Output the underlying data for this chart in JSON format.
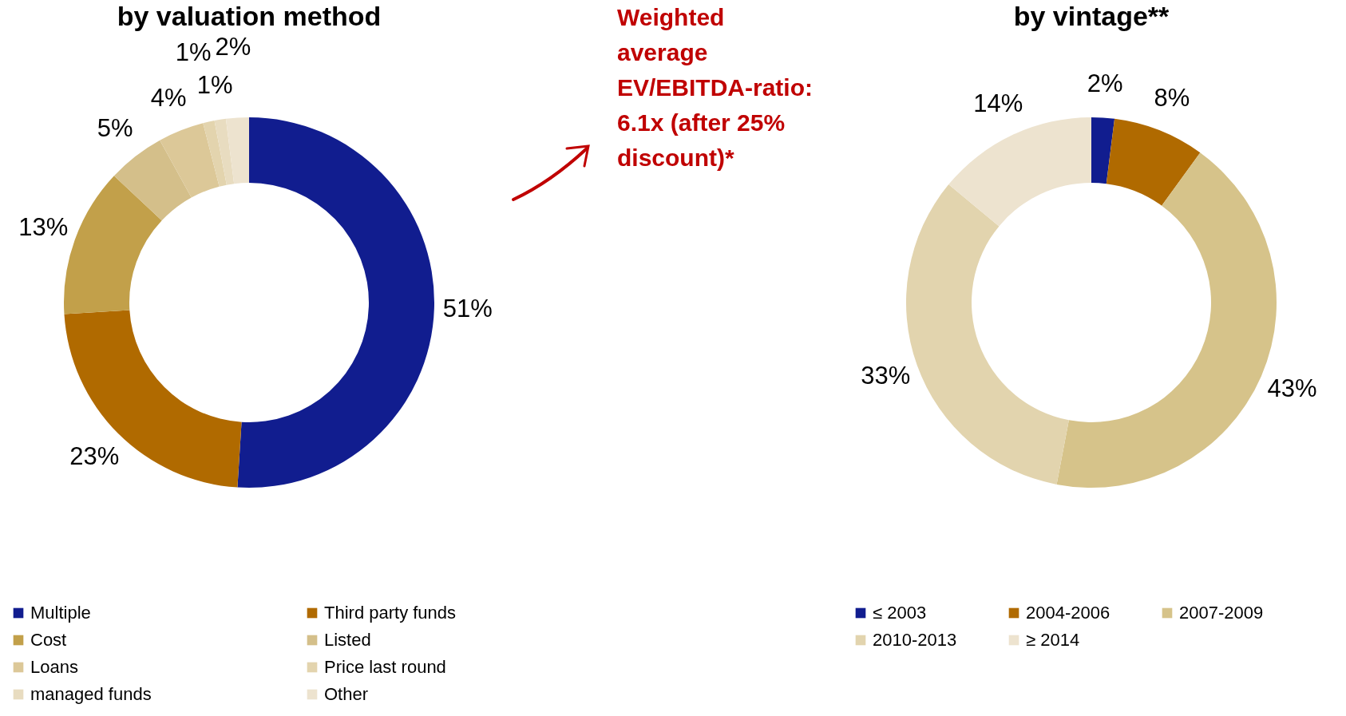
{
  "chart_data": [
    {
      "type": "donut",
      "title": "by valuation method",
      "categories": [
        "Multiple",
        "Third party funds",
        "Cost",
        "Listed",
        "Loans",
        "Price last round",
        "managed funds",
        "Other"
      ],
      "values": [
        51,
        23,
        13,
        5,
        4,
        1,
        1,
        2
      ],
      "colors": [
        "#111d8f",
        "#b06a00",
        "#c2a04a",
        "#d4bf8a",
        "#dcc898",
        "#e3d4ae",
        "#e8dcc0",
        "#ede3cf"
      ],
      "value_labels": [
        "51%",
        "23%",
        "13%",
        "5%",
        "4%",
        "1%",
        "1%",
        "2%"
      ],
      "legend": "bottom",
      "annotations": [
        "Weighted average EV/EBITDA-ratio: 6.1x (after 25% discount)*"
      ]
    },
    {
      "type": "donut",
      "title": "by vintage**",
      "categories": [
        "≤ 2003",
        "2004-2006",
        "2007-2009",
        "2010-2013",
        "≥ 2014"
      ],
      "values": [
        2,
        8,
        43,
        33,
        14
      ],
      "colors": [
        "#111d8f",
        "#b06a00",
        "#d6c38a",
        "#e2d4ae",
        "#ede3cf"
      ],
      "value_labels": [
        "2%",
        "8%",
        "43%",
        "33%",
        "14%"
      ],
      "legend": "bottom"
    }
  ]
}
